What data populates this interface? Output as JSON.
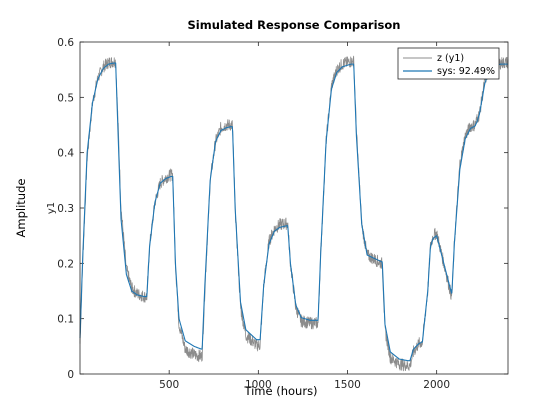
{
  "chart_data": {
    "type": "line",
    "title": "Simulated Response Comparison",
    "xlabel": "Time (hours)",
    "ylabel": "Amplitude",
    "channel_label": "y1",
    "xlim": [
      0,
      2400
    ],
    "ylim": [
      0,
      0.6
    ],
    "xticks": [
      500,
      1000,
      1500,
      2000
    ],
    "yticks": [
      0,
      0.1,
      0.2,
      0.3,
      0.4,
      0.5,
      0.6
    ],
    "grid": false,
    "legend_position": "top-right",
    "series": [
      {
        "name": "z (y1)",
        "color": "#8c8c8c",
        "noisy": true,
        "x": [
          0,
          15,
          40,
          70,
          100,
          130,
          160,
          190,
          200,
          215,
          230,
          260,
          290,
          320,
          360,
          375,
          390,
          420,
          450,
          480,
          510,
          520,
          535,
          555,
          590,
          640,
          680,
          685,
          700,
          730,
          760,
          790,
          820,
          845,
          855,
          870,
          900,
          930,
          990,
          1000,
          1010,
          1030,
          1060,
          1090,
          1120,
          1160,
          1165,
          1180,
          1210,
          1240,
          1290,
          1330,
          1335,
          1350,
          1380,
          1410,
          1440,
          1470,
          1500,
          1520,
          1535,
          1550,
          1580,
          1610,
          1690,
          1695,
          1710,
          1740,
          1790,
          1840,
          1850,
          1870,
          1900,
          1920,
          1950,
          1965,
          1980,
          2000,
          2040,
          2080,
          2085,
          2100,
          2130,
          2160,
          2190,
          2215,
          2225,
          2240,
          2270,
          2300,
          2330,
          2360,
          2390,
          2400
        ],
        "y": [
          0.055,
          0.2,
          0.39,
          0.49,
          0.535,
          0.555,
          0.563,
          0.565,
          0.565,
          0.44,
          0.3,
          0.19,
          0.155,
          0.145,
          0.14,
          0.14,
          0.23,
          0.31,
          0.345,
          0.355,
          0.36,
          0.36,
          0.2,
          0.09,
          0.045,
          0.035,
          0.032,
          0.032,
          0.15,
          0.35,
          0.42,
          0.445,
          0.45,
          0.45,
          0.45,
          0.3,
          0.12,
          0.07,
          0.052,
          0.052,
          0.052,
          0.16,
          0.24,
          0.262,
          0.27,
          0.272,
          0.272,
          0.2,
          0.12,
          0.096,
          0.092,
          0.092,
          0.092,
          0.22,
          0.42,
          0.52,
          0.55,
          0.56,
          0.563,
          0.565,
          0.565,
          0.44,
          0.27,
          0.215,
          0.2,
          0.2,
          0.08,
          0.03,
          0.018,
          0.015,
          0.015,
          0.04,
          0.055,
          0.058,
          0.15,
          0.23,
          0.25,
          0.255,
          0.2,
          0.145,
          0.14,
          0.24,
          0.38,
          0.43,
          0.448,
          0.45,
          0.46,
          0.47,
          0.53,
          0.555,
          0.56,
          0.562,
          0.563,
          0.563
        ]
      },
      {
        "name": "sys: 92.49%",
        "color": "#1f77b4",
        "noisy": false,
        "x": [
          0,
          15,
          40,
          70,
          100,
          130,
          160,
          190,
          200,
          215,
          230,
          260,
          290,
          320,
          360,
          375,
          390,
          420,
          450,
          480,
          510,
          520,
          535,
          555,
          590,
          640,
          680,
          685,
          700,
          730,
          760,
          790,
          820,
          845,
          855,
          870,
          900,
          930,
          990,
          1000,
          1010,
          1030,
          1060,
          1090,
          1120,
          1160,
          1165,
          1180,
          1210,
          1240,
          1290,
          1330,
          1335,
          1350,
          1380,
          1410,
          1440,
          1470,
          1500,
          1520,
          1535,
          1550,
          1580,
          1610,
          1690,
          1695,
          1710,
          1740,
          1790,
          1840,
          1850,
          1870,
          1900,
          1920,
          1950,
          1965,
          1980,
          2000,
          2040,
          2080,
          2085,
          2100,
          2130,
          2160,
          2190,
          2215,
          2225,
          2240,
          2270,
          2300,
          2330,
          2360,
          2390,
          2400
        ],
        "y": [
          0.065,
          0.21,
          0.4,
          0.49,
          0.533,
          0.552,
          0.56,
          0.562,
          0.562,
          0.42,
          0.28,
          0.18,
          0.15,
          0.143,
          0.14,
          0.14,
          0.23,
          0.31,
          0.345,
          0.353,
          0.357,
          0.357,
          0.2,
          0.1,
          0.06,
          0.05,
          0.045,
          0.045,
          0.16,
          0.35,
          0.42,
          0.44,
          0.445,
          0.447,
          0.447,
          0.3,
          0.13,
          0.08,
          0.062,
          0.062,
          0.062,
          0.16,
          0.235,
          0.258,
          0.265,
          0.268,
          0.268,
          0.2,
          0.125,
          0.102,
          0.097,
          0.097,
          0.097,
          0.22,
          0.42,
          0.515,
          0.545,
          0.555,
          0.558,
          0.56,
          0.56,
          0.43,
          0.27,
          0.215,
          0.203,
          0.203,
          0.09,
          0.04,
          0.027,
          0.024,
          0.024,
          0.045,
          0.055,
          0.058,
          0.15,
          0.23,
          0.245,
          0.25,
          0.2,
          0.15,
          0.145,
          0.24,
          0.37,
          0.425,
          0.444,
          0.448,
          0.455,
          0.47,
          0.525,
          0.552,
          0.558,
          0.56,
          0.56,
          0.56
        ]
      }
    ]
  }
}
